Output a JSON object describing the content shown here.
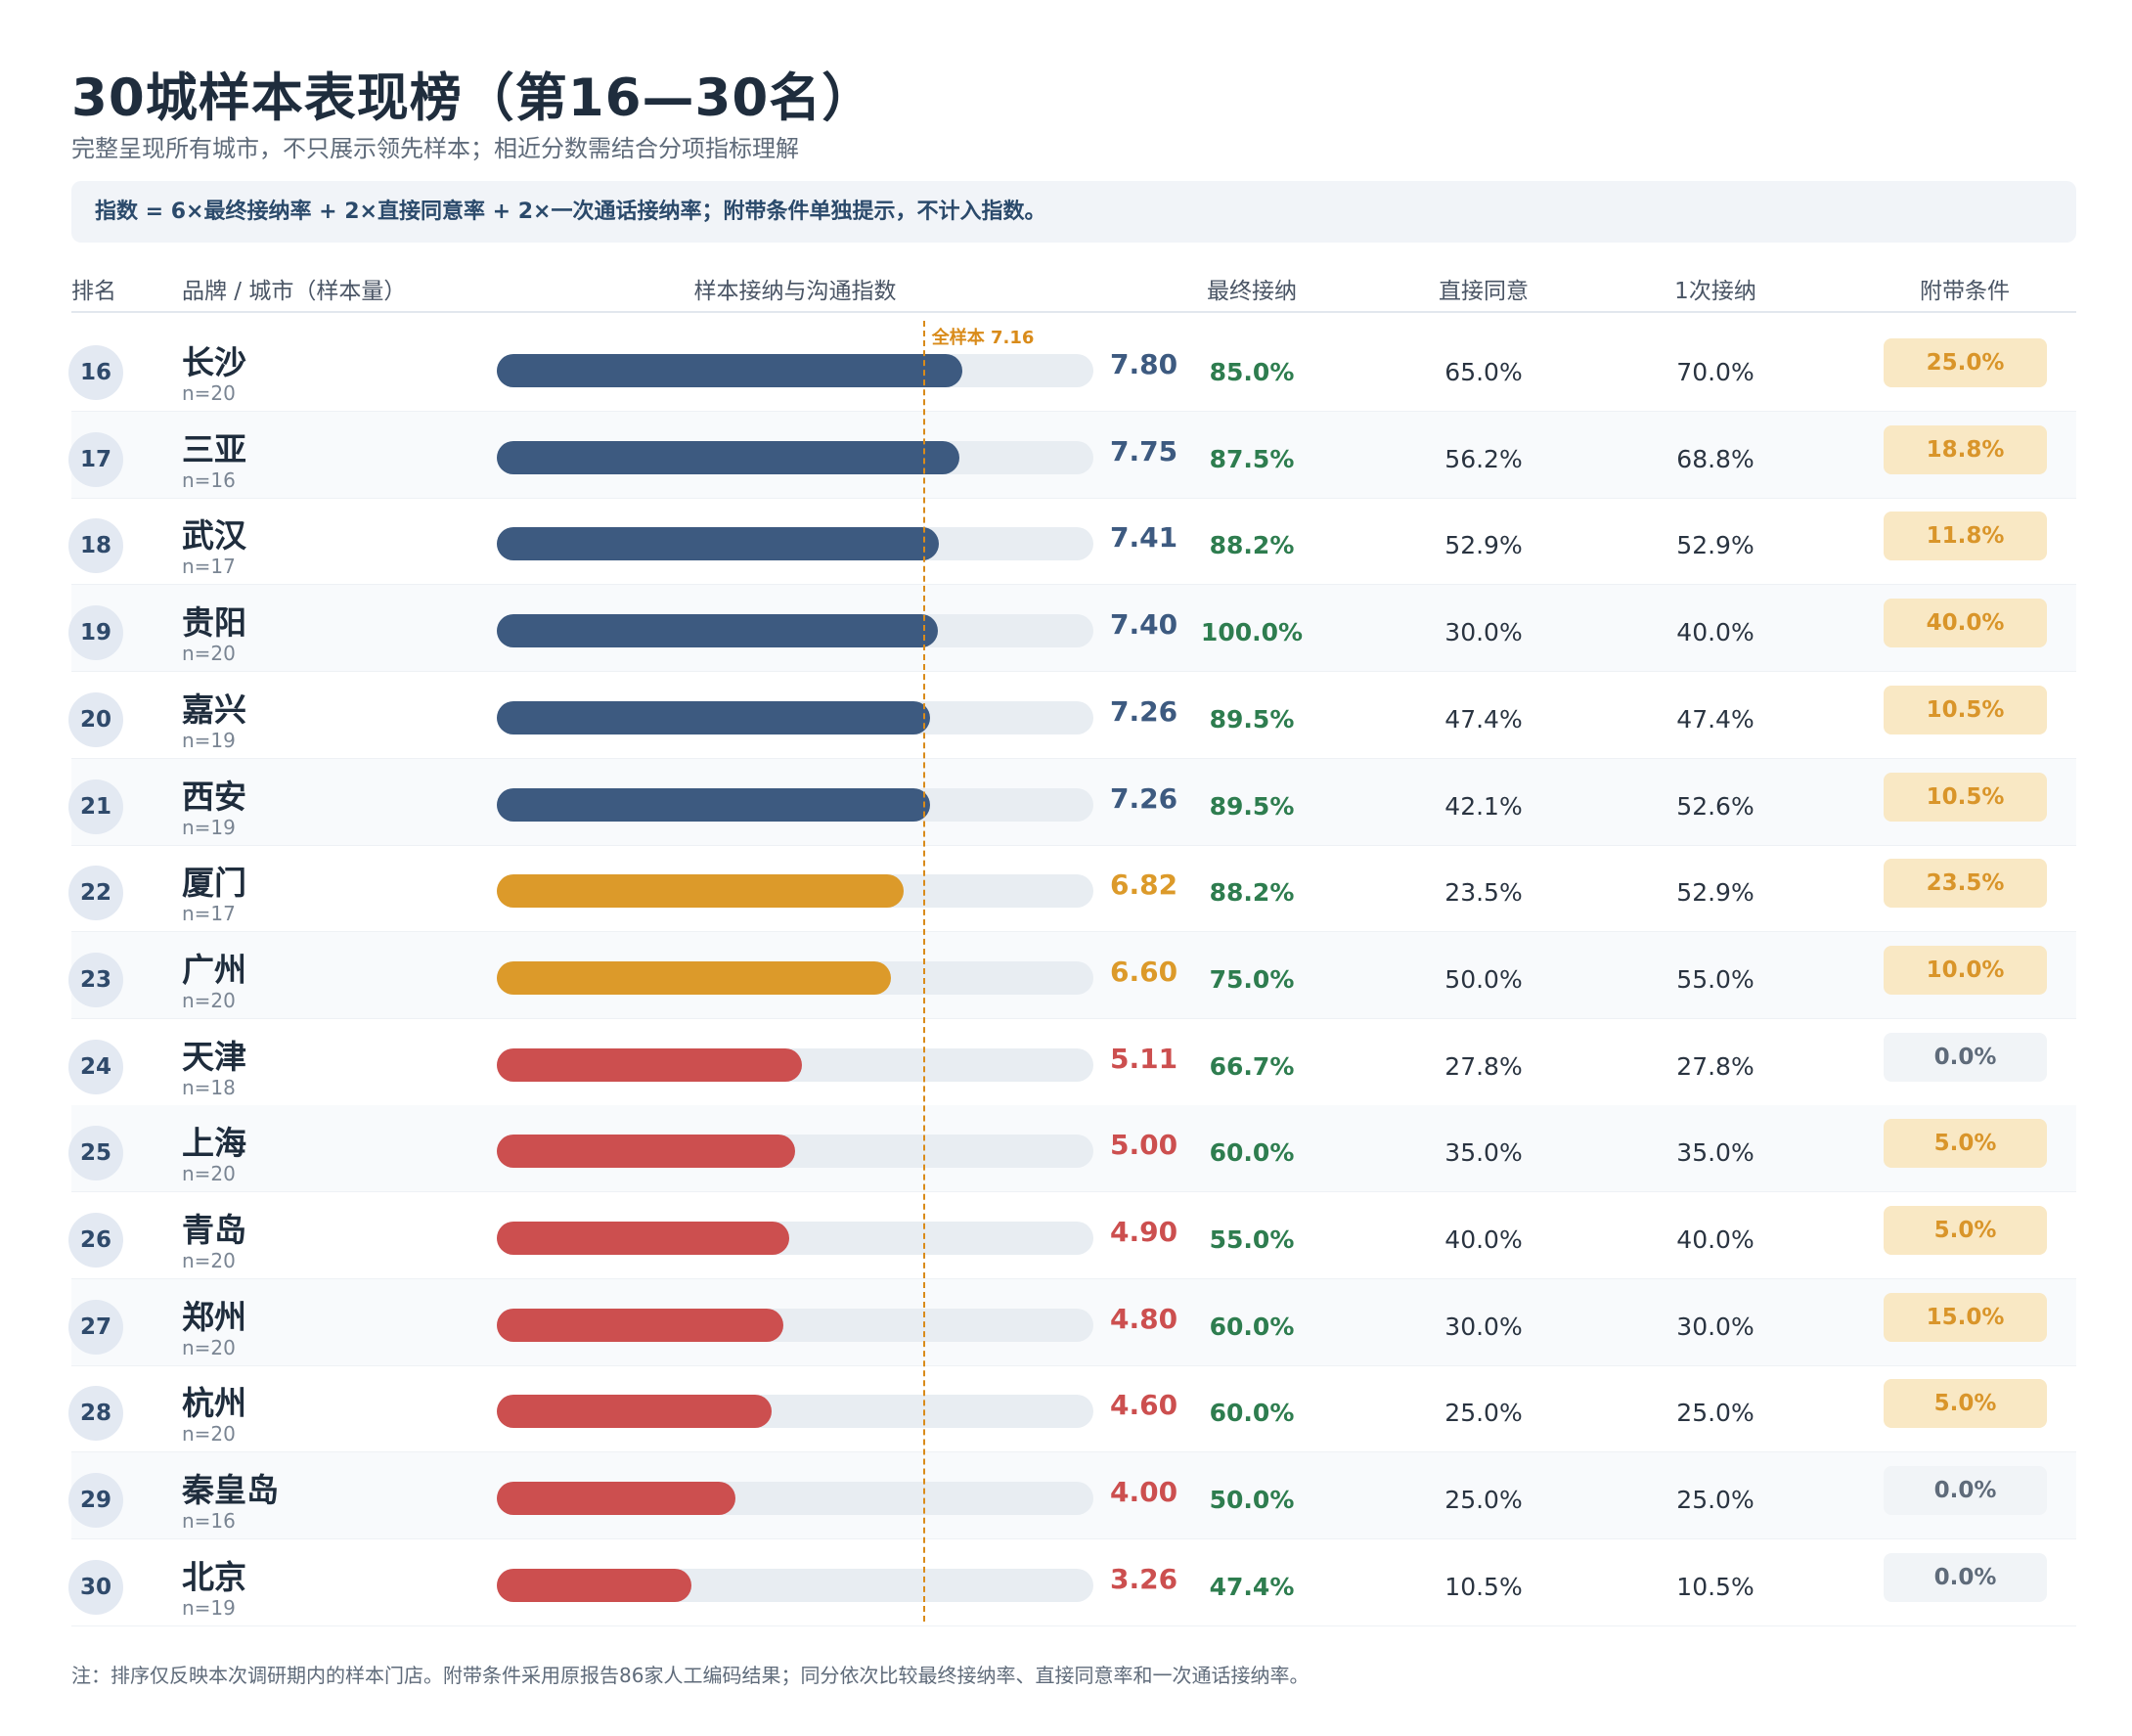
{
  "title": "30城样本表现榜（第16—30名）",
  "subtitle": "完整呈现所有城市，不只展示领先样本；相近分数需结合分项指标理解",
  "formula": "指数 = 6×最终接纳率 + 2×直接同意率 + 2×一次通话接纳率；附带条件单独提示，不计入指数。",
  "headers": {
    "rank": "排名",
    "city": "品牌 / 城市（样本量）",
    "index": "样本接纳与沟通指数",
    "final": "最终接纳",
    "direct": "直接同意",
    "first": "1次接纳",
    "condition": "附带条件"
  },
  "note": "注：排序仅反映本次调研期内的样本门店。附带条件采用原报告86家人工编码结果；同分依次比较最终接纳率、直接同意率和一次通话接纳率。",
  "colors": {
    "high": "#3d5a80",
    "mid": "#dc9a2a",
    "low": "#cc4f4f",
    "avg": "#d98b1a"
  },
  "chart_data": {
    "type": "bar",
    "xlim": [
      0,
      10
    ],
    "reference": {
      "label": "全样本 7.16",
      "value": 7.16
    },
    "rows": [
      {
        "rank": "16",
        "city": "长沙",
        "n": "n=20",
        "score": 7.8,
        "score_label": "7.80",
        "tier": "high",
        "final": "85.0%",
        "direct": "65.0%",
        "first": "70.0%",
        "condition": "25.0%",
        "cond_on": true
      },
      {
        "rank": "17",
        "city": "三亚",
        "n": "n=16",
        "score": 7.75,
        "score_label": "7.75",
        "tier": "high",
        "final": "87.5%",
        "direct": "56.2%",
        "first": "68.8%",
        "condition": "18.8%",
        "cond_on": true
      },
      {
        "rank": "18",
        "city": "武汉",
        "n": "n=17",
        "score": 7.41,
        "score_label": "7.41",
        "tier": "high",
        "final": "88.2%",
        "direct": "52.9%",
        "first": "52.9%",
        "condition": "11.8%",
        "cond_on": true
      },
      {
        "rank": "19",
        "city": "贵阳",
        "n": "n=20",
        "score": 7.4,
        "score_label": "7.40",
        "tier": "high",
        "final": "100.0%",
        "direct": "30.0%",
        "first": "40.0%",
        "condition": "40.0%",
        "cond_on": true
      },
      {
        "rank": "20",
        "city": "嘉兴",
        "n": "n=19",
        "score": 7.26,
        "score_label": "7.26",
        "tier": "high",
        "final": "89.5%",
        "direct": "47.4%",
        "first": "47.4%",
        "condition": "10.5%",
        "cond_on": true
      },
      {
        "rank": "21",
        "city": "西安",
        "n": "n=19",
        "score": 7.26,
        "score_label": "7.26",
        "tier": "high",
        "final": "89.5%",
        "direct": "42.1%",
        "first": "52.6%",
        "condition": "10.5%",
        "cond_on": true
      },
      {
        "rank": "22",
        "city": "厦门",
        "n": "n=17",
        "score": 6.82,
        "score_label": "6.82",
        "tier": "mid",
        "final": "88.2%",
        "direct": "23.5%",
        "first": "52.9%",
        "condition": "23.5%",
        "cond_on": true
      },
      {
        "rank": "23",
        "city": "广州",
        "n": "n=20",
        "score": 6.6,
        "score_label": "6.60",
        "tier": "mid",
        "final": "75.0%",
        "direct": "50.0%",
        "first": "55.0%",
        "condition": "10.0%",
        "cond_on": true
      },
      {
        "rank": "24",
        "city": "天津",
        "n": "n=18",
        "score": 5.11,
        "score_label": "5.11",
        "tier": "low",
        "final": "66.7%",
        "direct": "27.8%",
        "first": "27.8%",
        "condition": "0.0%",
        "cond_on": false
      },
      {
        "rank": "25",
        "city": "上海",
        "n": "n=20",
        "score": 5.0,
        "score_label": "5.00",
        "tier": "low",
        "final": "60.0%",
        "direct": "35.0%",
        "first": "35.0%",
        "condition": "5.0%",
        "cond_on": true
      },
      {
        "rank": "26",
        "city": "青岛",
        "n": "n=20",
        "score": 4.9,
        "score_label": "4.90",
        "tier": "low",
        "final": "55.0%",
        "direct": "40.0%",
        "first": "40.0%",
        "condition": "5.0%",
        "cond_on": true
      },
      {
        "rank": "27",
        "city": "郑州",
        "n": "n=20",
        "score": 4.8,
        "score_label": "4.80",
        "tier": "low",
        "final": "60.0%",
        "direct": "30.0%",
        "first": "30.0%",
        "condition": "15.0%",
        "cond_on": true
      },
      {
        "rank": "28",
        "city": "杭州",
        "n": "n=20",
        "score": 4.6,
        "score_label": "4.60",
        "tier": "low",
        "final": "60.0%",
        "direct": "25.0%",
        "first": "25.0%",
        "condition": "5.0%",
        "cond_on": true
      },
      {
        "rank": "29",
        "city": "秦皇岛",
        "n": "n=16",
        "score": 4.0,
        "score_label": "4.00",
        "tier": "low",
        "final": "50.0%",
        "direct": "25.0%",
        "first": "25.0%",
        "condition": "0.0%",
        "cond_on": false
      },
      {
        "rank": "30",
        "city": "北京",
        "n": "n=19",
        "score": 3.26,
        "score_label": "3.26",
        "tier": "low",
        "final": "47.4%",
        "direct": "10.5%",
        "first": "10.5%",
        "condition": "0.0%",
        "cond_on": false
      }
    ]
  }
}
